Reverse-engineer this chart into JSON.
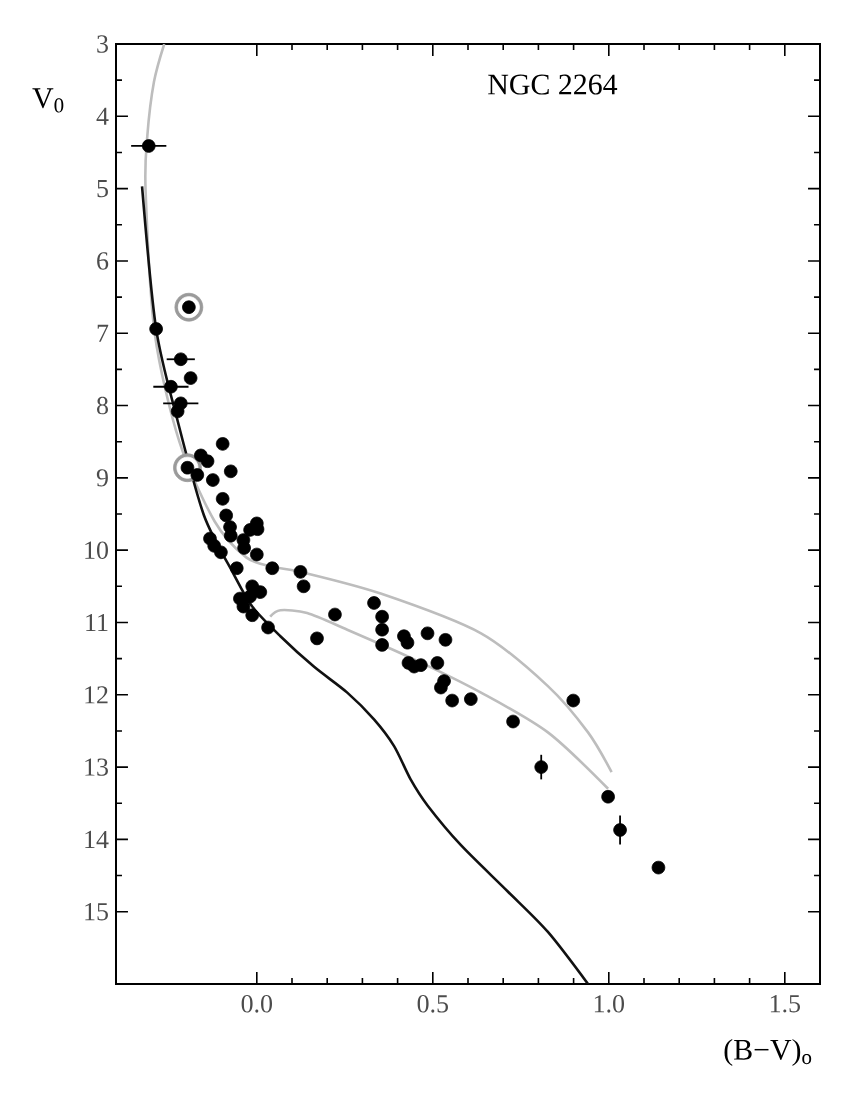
{
  "chart_data": {
    "type": "scatter",
    "title": "NGC 2264",
    "xlabel": "(B−V)$_{o}$",
    "ylabel": "V$_{0}$",
    "xlim": [
      -0.4,
      1.6
    ],
    "xticks": [
      {
        "value": 0,
        "label": "0.0"
      },
      0.5,
      {
        "value": 1,
        "label": "1.0"
      },
      1.5
    ],
    "ylim": [
      16,
      3
    ],
    "yticks": [
      3,
      4,
      5,
      6,
      7,
      8,
      9,
      10,
      11,
      12,
      13,
      14,
      15
    ],
    "grid": false,
    "series": [
      {
        "marker": "circle",
        "color": "#9a9a9a",
        "x": [
          -0.193,
          -0.197
        ],
        "values": [
          6.64,
          8.86
        ]
      },
      {
        "type": "line",
        "marker": "none",
        "color": "#bdbdbd",
        "x": [
          -0.263,
          -0.292,
          -0.311,
          -0.316,
          -0.29,
          -0.22,
          -0.12,
          -0.03,
          0.044,
          0.124,
          0.352,
          0.637,
          0.827,
          0.941,
          1.008
        ],
        "values": [
          3.0,
          3.52,
          4.27,
          5.02,
          7.0,
          8.5,
          9.6,
          10.1,
          10.23,
          10.3,
          10.6,
          11.15,
          11.88,
          12.52,
          13.07
        ]
      },
      {
        "type": "line",
        "marker": "none",
        "color": "#bdbdbd",
        "x": [
          0.038,
          0.067,
          0.143,
          0.257,
          0.447,
          0.637,
          0.827,
          0.998
        ],
        "values": [
          10.92,
          10.83,
          10.87,
          11.1,
          11.51,
          11.97,
          12.52,
          13.3
        ]
      },
      {
        "type": "line",
        "marker": "none",
        "color": "#111111",
        "x": [
          -0.326,
          -0.286,
          -0.225,
          -0.15,
          -0.067,
          -0.013,
          0.067,
          0.162,
          0.257,
          0.333,
          0.39,
          0.437,
          0.485,
          0.58,
          0.713,
          0.827,
          0.941
        ],
        "values": [
          4.97,
          6.94,
          8.21,
          9.52,
          10.32,
          10.78,
          11.19,
          11.61,
          11.97,
          12.34,
          12.71,
          13.17,
          13.53,
          14.08,
          14.72,
          15.28,
          16.0
        ]
      },
      {
        "marker": "circle",
        "color": "#000000",
        "x": [
          -0.307,
          -0.193,
          -0.286,
          -0.216,
          -0.188,
          -0.244,
          -0.216,
          -0.225,
          -0.097,
          -0.159,
          -0.14,
          -0.197,
          -0.169,
          -0.125,
          -0.074,
          -0.097,
          -0.087,
          -0.074,
          0.002,
          -0.121,
          -0.102,
          -0.036,
          -0.133,
          -0.076,
          0.0,
          -0.019,
          -0.038,
          0.0,
          -0.057,
          0.044,
          0.124,
          0.133,
          -0.013,
          -0.048,
          -0.019,
          0.01,
          -0.038,
          -0.013,
          0.032,
          0.222,
          0.171,
          0.333,
          0.356,
          0.356,
          0.356,
          0.418,
          0.428,
          0.485,
          0.536,
          0.431,
          0.447,
          0.466,
          0.513,
          0.532,
          0.523,
          0.555,
          0.608,
          0.728,
          0.899,
          0.808,
          0.998,
          1.032,
          1.141
        ],
        "values": [
          4.41,
          6.64,
          6.94,
          7.36,
          7.62,
          7.74,
          7.97,
          8.08,
          8.53,
          8.69,
          8.77,
          8.86,
          8.96,
          9.03,
          8.91,
          9.29,
          9.52,
          9.8,
          9.71,
          9.94,
          10.03,
          9.97,
          9.84,
          9.68,
          9.63,
          9.72,
          9.86,
          10.06,
          10.25,
          10.25,
          10.3,
          10.5,
          10.5,
          10.67,
          10.64,
          10.58,
          10.78,
          10.9,
          11.07,
          10.89,
          11.22,
          10.73,
          10.92,
          11.1,
          11.31,
          11.19,
          11.28,
          11.15,
          11.24,
          11.56,
          11.61,
          11.59,
          11.56,
          11.81,
          11.9,
          12.08,
          12.06,
          12.37,
          12.08,
          13.0,
          13.41,
          13.87,
          14.39
        ],
        "xerrors": [
          0.05,
          null,
          null,
          0.04,
          null,
          0.05,
          0.05,
          null,
          null,
          null,
          null,
          null,
          null,
          null,
          null,
          null,
          null,
          null,
          null,
          null,
          null,
          null,
          null,
          null,
          null,
          null,
          null,
          null,
          null,
          null,
          null,
          null,
          null,
          null,
          null,
          null,
          null,
          null,
          null,
          null,
          null,
          null,
          null,
          null,
          null,
          null,
          null,
          null,
          null,
          null,
          null,
          null,
          null,
          null,
          null,
          null,
          null,
          null,
          null,
          null,
          null,
          null,
          null
        ],
        "errors": [
          null,
          null,
          null,
          null,
          null,
          null,
          null,
          null,
          null,
          null,
          null,
          null,
          null,
          null,
          null,
          null,
          null,
          null,
          null,
          null,
          null,
          null,
          null,
          null,
          null,
          null,
          null,
          null,
          null,
          null,
          null,
          null,
          null,
          null,
          null,
          null,
          null,
          null,
          null,
          null,
          null,
          null,
          null,
          null,
          null,
          null,
          null,
          null,
          null,
          null,
          null,
          null,
          null,
          null,
          null,
          null,
          null,
          null,
          null,
          0.17,
          null,
          0.2,
          null
        ]
      }
    ]
  }
}
